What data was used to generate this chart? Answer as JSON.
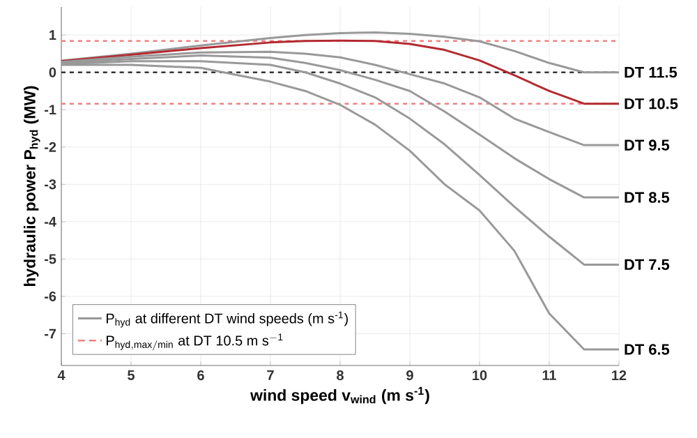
{
  "chart_data": {
    "type": "line",
    "xlabel": "wind speed v$_{wind}$ (m s$^{-1}$)",
    "ylabel": "hydraulic power P$_{hyd}$ (MW)",
    "xlim": [
      4,
      12
    ],
    "ylim": [
      -7.85,
      1.75
    ],
    "xticks": [
      4,
      5,
      6,
      7,
      8,
      9,
      10,
      11,
      12
    ],
    "yticks": [
      -7,
      -6,
      -5,
      -4,
      -3,
      -2,
      -1,
      0,
      1
    ],
    "grid": true,
    "legend": "bottom left",
    "line_style": "solid",
    "annotations": [
      "P$_{hyd}$ at different DT wind speeds (m s$^{-1}$)"
    ],
    "ref_lines": [
      {
        "axis": "y",
        "value": 0,
        "color": "#333333",
        "line_style": "dashed"
      },
      {
        "axis": "y",
        "value": 0.84,
        "color": "#f08080",
        "line_style": "dashed",
        "label": "\\mathrm{P_{hyd,max/min}\\ at\\ DT\\ 10.5\\ m\\ s^{-1}}"
      },
      {
        "axis": "y",
        "value": -0.84,
        "color": "#f08080",
        "line_style": "dashed"
      }
    ],
    "x": [
      4,
      5,
      6,
      7,
      7.5,
      8,
      8.5,
      9,
      9.5,
      10,
      10.5,
      11,
      11.5,
      12
    ],
    "series": [
      {
        "name": "DT 11.5",
        "color": "#999999",
        "values": [
          0.31,
          0.5,
          0.72,
          0.92,
          1.0,
          1.05,
          1.07,
          1.03,
          0.95,
          0.83,
          0.57,
          0.25,
          0,
          0
        ]
      },
      {
        "name": "DT 10.5",
        "color": "#b22a30",
        "values": [
          0.3,
          0.47,
          0.65,
          0.8,
          0.84,
          0.85,
          0.84,
          0.76,
          0.6,
          0.32,
          -0.08,
          -0.5,
          -0.84,
          -0.84
        ]
      },
      {
        "name": "DT 9.5",
        "color": "#999999",
        "values": [
          0.28,
          0.42,
          0.53,
          0.55,
          0.5,
          0.4,
          0.2,
          -0.05,
          -0.3,
          -0.67,
          -1.24,
          -1.6,
          -1.95,
          -1.95
        ]
      },
      {
        "name": "DT 8.5",
        "color": "#999999",
        "values": [
          0.25,
          0.36,
          0.45,
          0.39,
          0.25,
          0.06,
          -0.2,
          -0.5,
          -1.05,
          -1.67,
          -2.3,
          -2.86,
          -3.35,
          -3.35
        ]
      },
      {
        "name": "DT 7.5",
        "color": "#999999",
        "values": [
          0.22,
          0.3,
          0.3,
          0.2,
          0,
          -0.3,
          -0.67,
          -1.24,
          -1.93,
          -2.75,
          -3.6,
          -4.4,
          -5.15,
          -5.15
        ]
      },
      {
        "name": "DT 6.5",
        "color": "#999999",
        "values": [
          0.2,
          0.2,
          0.12,
          -0.25,
          -0.5,
          -0.87,
          -1.4,
          -2.1,
          -3.0,
          -3.7,
          -4.78,
          -6.46,
          -7.42,
          -7.42
        ]
      }
    ]
  }
}
